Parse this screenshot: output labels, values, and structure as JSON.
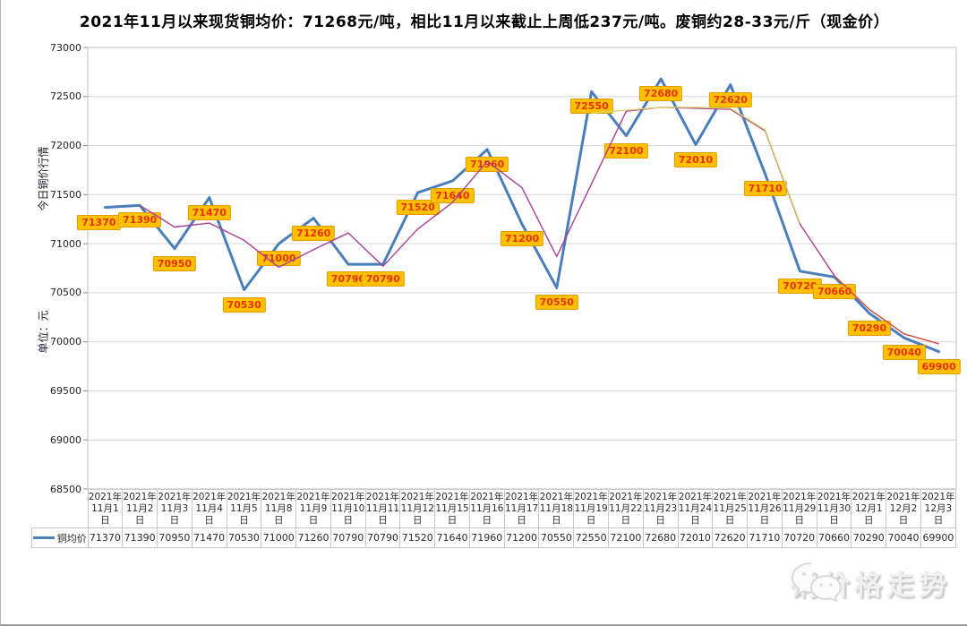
{
  "title": "2021年11月以来现货铜均价：71268元/吨，相比11月以来截止上周低237元/吨。废铜约28-33元/斤（现金价）",
  "y_axis": {
    "title_upper": "今日铜价行情",
    "title_lower": "单位：元",
    "ticks": [
      73000,
      72500,
      72000,
      71500,
      71000,
      70500,
      70000,
      69500,
      69000,
      68500
    ]
  },
  "legend": {
    "label": "铜均价",
    "line_color": "#4a7ebb"
  },
  "watermark": {
    "text": "铜价格走势",
    "icon": "wechat-icon"
  },
  "colors": {
    "grid": "#d6d6d6",
    "plot_border": "#bfbfbf",
    "label_bg": "#ffc000",
    "label_text": "#e63200",
    "main_line": "#4a7ebb",
    "overlay_magenta": "#a83f97",
    "overlay_yellow": "#dcd46e",
    "overlay_red": "#cf5244"
  },
  "chart_data": {
    "type": "line",
    "title": "2021年11月以来现货铜均价：71268元/吨，相比11月以来截止上周低237元/吨。废铜约28-33元/斤（现金价）",
    "xlabel": "",
    "ylabel": "今日铜价行情 单位：元",
    "ylim": [
      68500,
      73000
    ],
    "y_step": 500,
    "grid": true,
    "legend_position": "bottom-left",
    "categories": [
      "2021年11月1日",
      "2021年11月2日",
      "2021年11月3日",
      "2021年11月4日",
      "2021年11月5日",
      "2021年11月8日",
      "2021年11月9日",
      "2021年11月10日",
      "2021年11月11日",
      "2021年11月12日",
      "2021年11月15日",
      "2021年11月16日",
      "2021年11月17日",
      "2021年11月18日",
      "2021年11月19日",
      "2021年11月22日",
      "2021年11月23日",
      "2021年11月24日",
      "2021年11月25日",
      "2021年11月26日",
      "2021年11月29日",
      "2021年11月30日",
      "2021年12月1日",
      "2021年12月2日",
      "2021年12月3日"
    ],
    "series": [
      {
        "name": "铜均价",
        "color": "#4a7ebb",
        "stroke_width": 3,
        "start_index": 0,
        "labeled": true,
        "values": [
          71370,
          71390,
          70950,
          71470,
          70530,
          71000,
          71260,
          70790,
          70790,
          71520,
          71640,
          71960,
          71200,
          70550,
          72550,
          72100,
          72680,
          72010,
          72620,
          71710,
          70720,
          70660,
          70290,
          70040,
          69900
        ]
      },
      {
        "name": "unlabeled-magenta-average-line",
        "color": "#a83f97",
        "stroke_width": 1.4,
        "start_index": 1,
        "labeled": false,
        "values": [
          71390,
          71170,
          71210,
          71035,
          70760,
          70940,
          71110,
          70770,
          71150,
          71420,
          71840,
          71570,
          70870,
          71610,
          72350,
          72390,
          72380,
          72370,
          72150,
          71200,
          70670
        ]
      },
      {
        "name": "unlabeled-yellow-average-line",
        "color": "#dcd46e",
        "stroke_width": 1.4,
        "start_index": 14,
        "labeled": false,
        "values": [
          72330,
          72360,
          72390,
          72390,
          72380,
          72160,
          71210
        ]
      },
      {
        "name": "unlabeled-red-average-line",
        "color": "#cf5244",
        "stroke_width": 1.5,
        "start_index": 21,
        "labeled": false,
        "values": [
          70670,
          70330,
          70080,
          69980
        ]
      }
    ]
  }
}
